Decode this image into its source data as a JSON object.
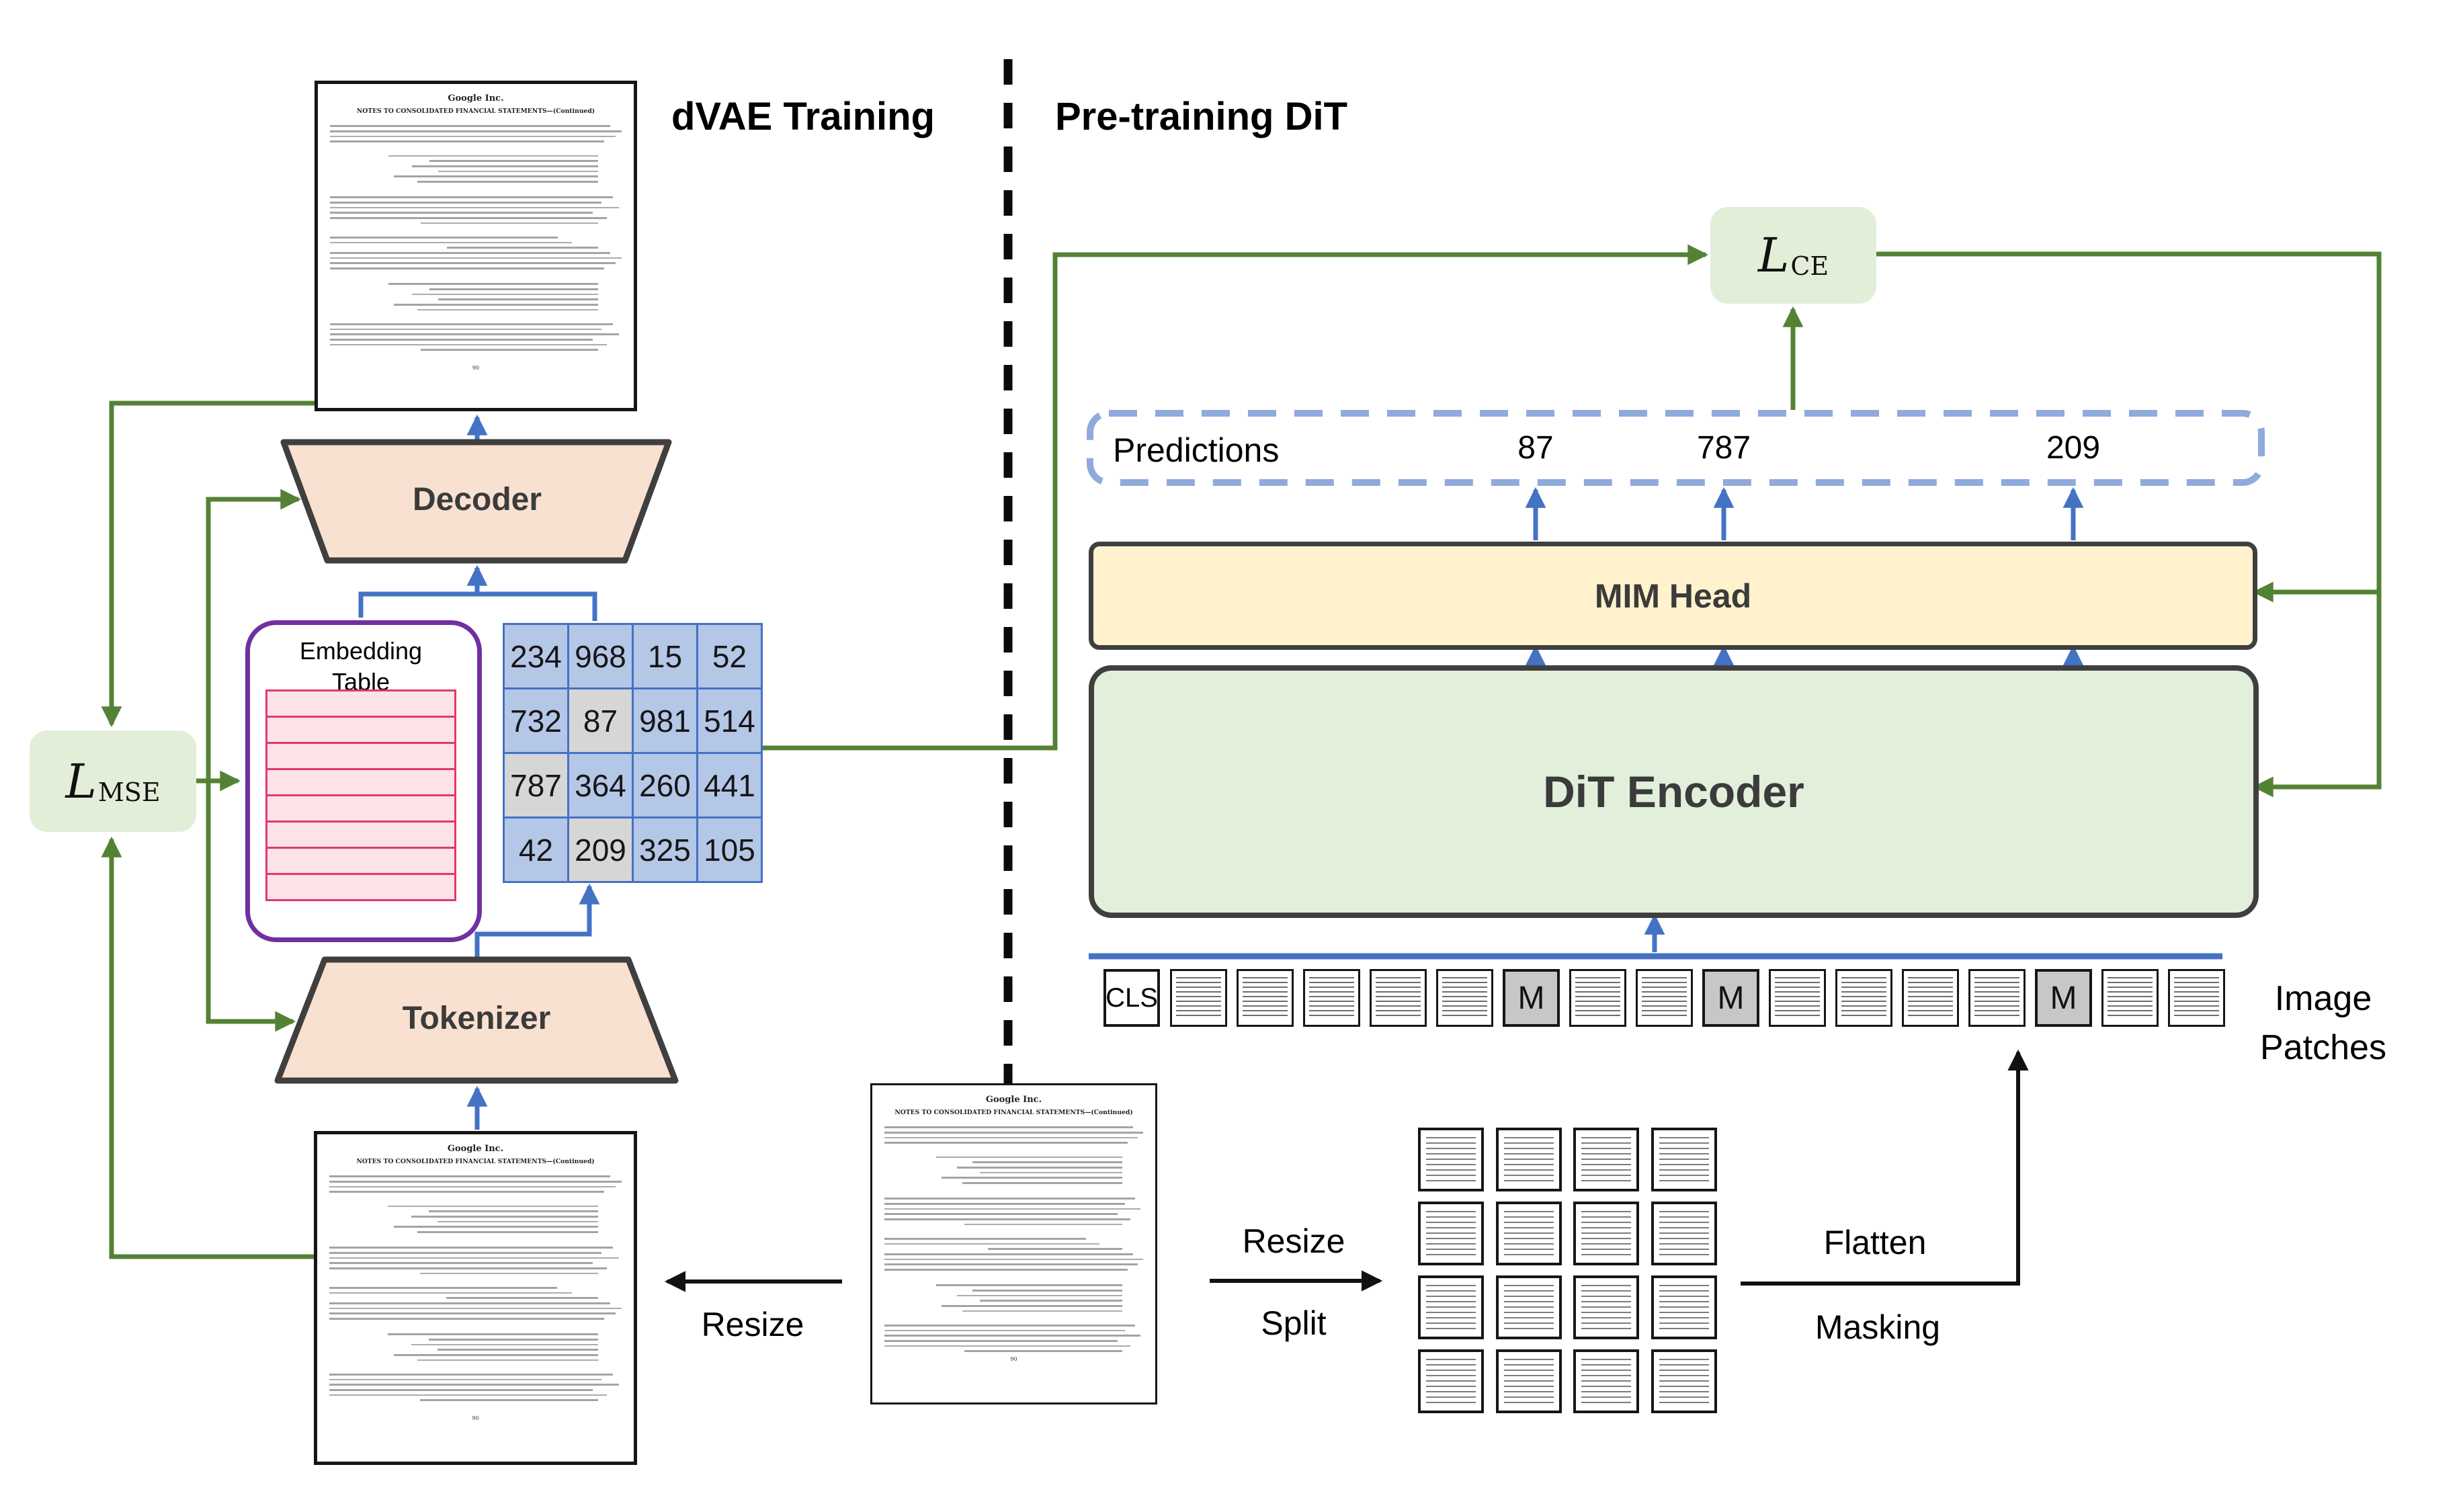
{
  "figure": {
    "left_title": "dVAE Training",
    "right_title": "Pre-training DiT"
  },
  "losses": {
    "mse": {
      "symbol": "L",
      "subscript": "MSE"
    },
    "ce": {
      "symbol": "L",
      "subscript": "CE"
    }
  },
  "dvae": {
    "decoder_label": "Decoder",
    "tokenizer_label": "Tokenizer",
    "embedding_table": {
      "title_line1": "Embedding",
      "title_line2": "Table",
      "row_count": 8
    },
    "token_grid": {
      "values": [
        [
          "234",
          "968",
          "15",
          "52"
        ],
        [
          "732",
          "87",
          "981",
          "514"
        ],
        [
          "787",
          "364",
          "260",
          "441"
        ],
        [
          "42",
          "209",
          "325",
          "105"
        ]
      ],
      "masked_cells": [
        [
          1,
          1
        ],
        [
          2,
          0
        ],
        [
          3,
          1
        ]
      ]
    }
  },
  "pretraining": {
    "predictions_label": "Predictions",
    "prediction_values": [
      "87",
      "787",
      "209"
    ],
    "mim_head_label": "MIM Head",
    "dit_encoder_label": "DiT Encoder",
    "cls_label": "CLS",
    "mask_label": "M",
    "patch_count": 16,
    "masked_patch_positions": [
      6,
      9,
      14
    ],
    "image_patches_line1": "Image",
    "image_patches_line2": "Patches"
  },
  "operations": {
    "resize_left": "Resize",
    "resize_right": "Resize",
    "split": "Split",
    "flatten": "Flatten",
    "masking": "Masking"
  },
  "document": {
    "company": "Google Inc.",
    "heading": "NOTES TO CONSOLIDATED FINANCIAL STATEMENTS—(Continued)",
    "page_number": "90"
  },
  "colors": {
    "green": "#548235",
    "blue": "#4472C4",
    "dash_blue": "#8FAADC",
    "cell_blue": "#B4C7E7",
    "masked_gray": "#D6D6D6",
    "mim_fill": "#FFF2CC",
    "dit_fill": "#E2EFDA",
    "loss_fill": "#E3EED9",
    "trapezoid_fill": "#F8E1D1",
    "embed_border": "#7030A0",
    "embed_row_fill": "#FCE3E8",
    "embed_row_border": "#E0396B",
    "box_border": "#3F3F3F"
  }
}
